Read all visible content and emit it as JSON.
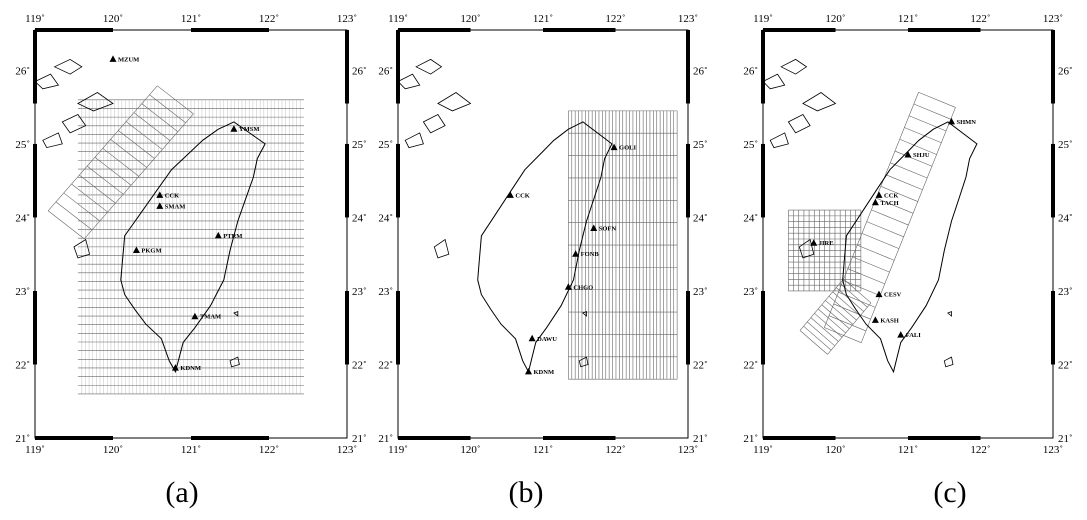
{
  "panels": [
    {
      "id": "a",
      "caption": "(a)",
      "lon_ticks": [
        "119˚",
        "120˚",
        "121˚",
        "122˚",
        "123˚"
      ],
      "lat_ticks": [
        "21˚",
        "22˚",
        "23˚",
        "24˚",
        "25˚",
        "26˚"
      ],
      "stations": [
        {
          "name": "MZUM",
          "lon": 120.0,
          "lat": 26.15
        },
        {
          "name": "YMSM",
          "lon": 121.55,
          "lat": 25.2
        },
        {
          "name": "CCK",
          "lon": 120.6,
          "lat": 24.3
        },
        {
          "name": "SMAM",
          "lon": 120.6,
          "lat": 24.15
        },
        {
          "name": "PTRM",
          "lon": 121.35,
          "lat": 23.75
        },
        {
          "name": "PKGM",
          "lon": 120.3,
          "lat": 23.55
        },
        {
          "name": "TMAM",
          "lon": 121.05,
          "lat": 22.65
        },
        {
          "name": "KDNM",
          "lon": 120.8,
          "lat": 21.95
        }
      ]
    },
    {
      "id": "b",
      "caption": "(b)",
      "lon_ticks": [
        "119˚",
        "120˚",
        "121˚",
        "122˚",
        "123˚"
      ],
      "lat_ticks": [
        "21˚",
        "22˚",
        "23˚",
        "24˚",
        "25˚",
        "26˚"
      ],
      "stations": [
        {
          "name": "GOLI",
          "lon": 121.98,
          "lat": 24.95
        },
        {
          "name": "CCK",
          "lon": 120.55,
          "lat": 24.3
        },
        {
          "name": "SOFN",
          "lon": 121.7,
          "lat": 23.85
        },
        {
          "name": "FONB",
          "lon": 121.45,
          "lat": 23.5
        },
        {
          "name": "CHGO",
          "lon": 121.35,
          "lat": 23.05
        },
        {
          "name": "DAWU",
          "lon": 120.85,
          "lat": 22.35
        },
        {
          "name": "KDNM",
          "lon": 120.8,
          "lat": 21.9
        }
      ]
    },
    {
      "id": "c",
      "caption": "(c)",
      "lon_ticks": [
        "119˚",
        "120˚",
        "121˚",
        "122˚",
        "123˚"
      ],
      "lat_ticks": [
        "21˚",
        "22˚",
        "23˚",
        "24˚",
        "25˚",
        "26˚"
      ],
      "stations": [
        {
          "name": "SHMN",
          "lon": 121.6,
          "lat": 25.3
        },
        {
          "name": "SHJU",
          "lon": 121.0,
          "lat": 24.85
        },
        {
          "name": "CCK",
          "lon": 120.6,
          "lat": 24.3
        },
        {
          "name": "TACH",
          "lon": 120.55,
          "lat": 24.2
        },
        {
          "name": "JIRE",
          "lon": 119.7,
          "lat": 23.65
        },
        {
          "name": "CESV",
          "lon": 120.6,
          "lat": 22.95
        },
        {
          "name": "KASH",
          "lon": 120.55,
          "lat": 22.6
        },
        {
          "name": "FALI",
          "lon": 120.9,
          "lat": 22.4
        }
      ]
    }
  ]
}
